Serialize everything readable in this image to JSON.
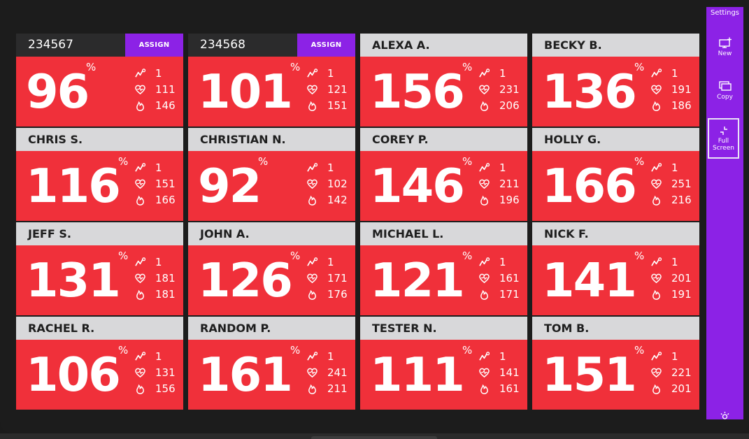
{
  "sidebar": {
    "settings_label": "Settings",
    "new_label": "New",
    "copy_label": "Copy",
    "fullscreen_label_line1": "Full",
    "fullscreen_label_line2": "Screen"
  },
  "colors": {
    "tile_red": "#f0303a",
    "header_gray": "#d8d8da",
    "accent_purple": "#8c22e6",
    "background": "#1c1c1c"
  },
  "icons": {
    "stat_1": "trend-icon",
    "stat_2": "heart-icon",
    "stat_3": "flame-icon"
  },
  "tiles": [
    {
      "name": "234567",
      "unassigned": true,
      "assign_label": "ASSIGN",
      "effort": "96",
      "unit": "%",
      "stat1": "1",
      "stat2": "111",
      "stat3": "146"
    },
    {
      "name": "234568",
      "unassigned": true,
      "assign_label": "ASSIGN",
      "effort": "101",
      "unit": "%",
      "stat1": "1",
      "stat2": "121",
      "stat3": "151"
    },
    {
      "name": "ALEXA A.",
      "effort": "156",
      "unit": "%",
      "stat1": "1",
      "stat2": "231",
      "stat3": "206"
    },
    {
      "name": "BECKY B.",
      "effort": "136",
      "unit": "%",
      "stat1": "1",
      "stat2": "191",
      "stat3": "186"
    },
    {
      "name": "CHRIS S.",
      "effort": "116",
      "unit": "%",
      "stat1": "1",
      "stat2": "151",
      "stat3": "166"
    },
    {
      "name": "CHRISTIAN N.",
      "effort": "92",
      "unit": "%",
      "stat1": "1",
      "stat2": "102",
      "stat3": "142"
    },
    {
      "name": "COREY P.",
      "effort": "146",
      "unit": "%",
      "stat1": "1",
      "stat2": "211",
      "stat3": "196"
    },
    {
      "name": "HOLLY G.",
      "effort": "166",
      "unit": "%",
      "stat1": "1",
      "stat2": "251",
      "stat3": "216"
    },
    {
      "name": "JEFF S.",
      "effort": "131",
      "unit": "%",
      "stat1": "1",
      "stat2": "181",
      "stat3": "181"
    },
    {
      "name": "JOHN A.",
      "effort": "126",
      "unit": "%",
      "stat1": "1",
      "stat2": "171",
      "stat3": "176"
    },
    {
      "name": "MICHAEL L.",
      "effort": "121",
      "unit": "%",
      "stat1": "1",
      "stat2": "161",
      "stat3": "171"
    },
    {
      "name": "NICK F.",
      "effort": "141",
      "unit": "%",
      "stat1": "1",
      "stat2": "201",
      "stat3": "191"
    },
    {
      "name": "RACHEL R.",
      "effort": "106",
      "unit": "%",
      "stat1": "1",
      "stat2": "131",
      "stat3": "156"
    },
    {
      "name": "RANDOM P.",
      "effort": "161",
      "unit": "%",
      "stat1": "1",
      "stat2": "241",
      "stat3": "211"
    },
    {
      "name": "TESTER N.",
      "effort": "111",
      "unit": "%",
      "stat1": "1",
      "stat2": "141",
      "stat3": "161"
    },
    {
      "name": "TOM B.",
      "effort": "151",
      "unit": "%",
      "stat1": "1",
      "stat2": "221",
      "stat3": "201"
    }
  ]
}
